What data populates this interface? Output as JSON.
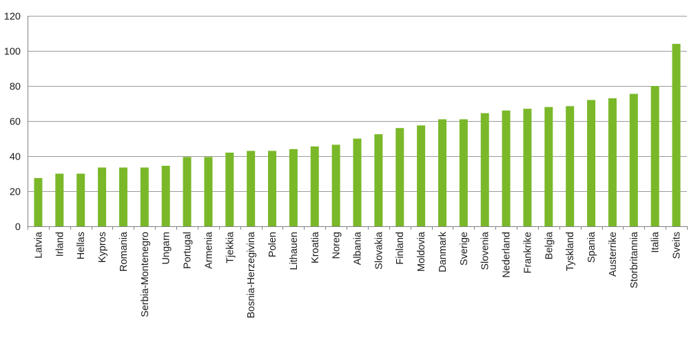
{
  "chart_data": {
    "type": "bar",
    "title": "",
    "xlabel": "",
    "ylabel": "",
    "ylim": [
      0,
      120
    ],
    "yticks": [
      0,
      20,
      40,
      60,
      80,
      100,
      120
    ],
    "grid": true,
    "bar_color": "#7ab829",
    "grid_color": "#9a9a9a",
    "categories": [
      "Latvia",
      "Irland",
      "Hellas",
      "Kypros",
      "Romania",
      "Serbia-Montenegro",
      "Ungarn",
      "Portugal",
      "Armenia",
      "Tjekkia",
      "Bosnia-Herzegivina",
      "Polen",
      "Lithauen",
      "Kroatia",
      "Noreg",
      "Albania",
      "Slovakia",
      "Finland",
      "Moldovia",
      "Danmark",
      "Sverige",
      "Slovenia",
      "Nederland",
      "Frankrike",
      "Belgia",
      "Tyskland",
      "Spania",
      "Austerrike",
      "Storbritannia",
      "Italia",
      "Sveits"
    ],
    "values": [
      27.5,
      30,
      30,
      33.5,
      33.5,
      33.5,
      34.5,
      39.5,
      39.5,
      42,
      43,
      43,
      44,
      45.5,
      46.5,
      50,
      52.5,
      56,
      57.5,
      61,
      61,
      64.5,
      66,
      67,
      68,
      68.5,
      72,
      73,
      75.5,
      80,
      104
    ]
  }
}
